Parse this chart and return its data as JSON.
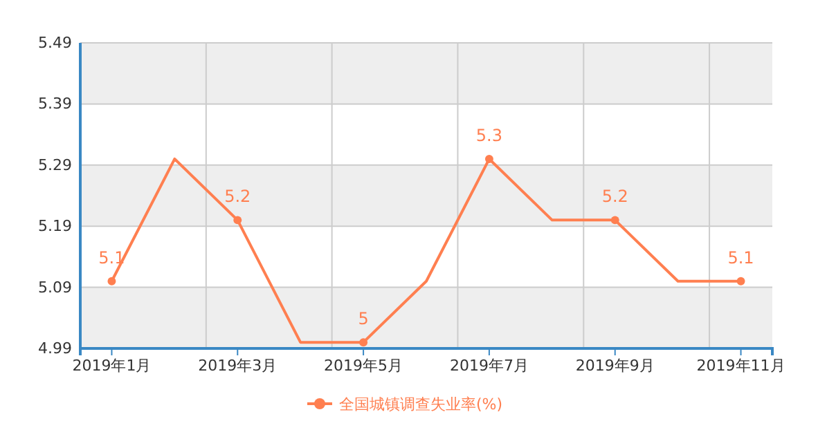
{
  "chart_data": {
    "type": "line",
    "categories": [
      "2019年1月",
      null,
      "2019年3月",
      null,
      "2019年5月",
      null,
      "2019年7月",
      null,
      "2019年9月",
      null,
      "2019年11月"
    ],
    "series": [
      {
        "name": "全国城镇调查失业率(%)",
        "color": "#ff7f50",
        "values": [
          5.1,
          5.3,
          5.2,
          5.0,
          5.0,
          5.1,
          5.3,
          5.2,
          5.2,
          5.1,
          5.1
        ],
        "value_labels": [
          "5.1",
          null,
          "5.2",
          null,
          "5",
          null,
          "5.3",
          null,
          "5.2",
          null,
          "5.1"
        ]
      }
    ],
    "ylim": [
      4.99,
      5.49
    ],
    "yticks": [
      4.99,
      5.09,
      5.19,
      5.29,
      5.39,
      5.49
    ],
    "grid": true,
    "legend": "bottom",
    "marker": "circle",
    "line_style": "solid"
  }
}
